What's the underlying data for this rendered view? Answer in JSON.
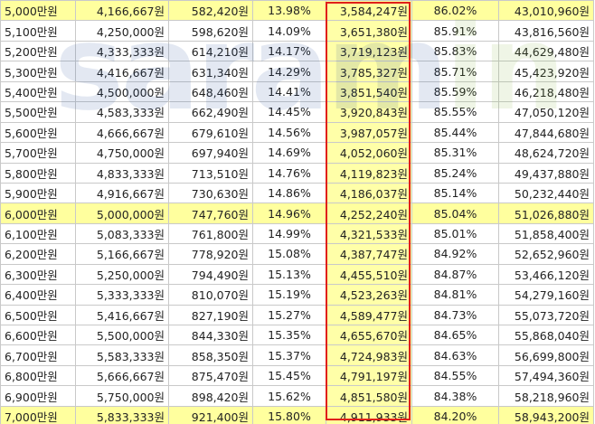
{
  "watermark": {
    "text_main": "saram",
    "text_tail": "in"
  },
  "rows": [
    [
      "5,000만원",
      "4,166,667원",
      "582,420원",
      "13.98%",
      "3,584,247원",
      "86.02%",
      "43,010,960원"
    ],
    [
      "5,100만원",
      "4,250,000원",
      "598,620원",
      "14.09%",
      "3,651,380원",
      "85.91%",
      "43,816,560원"
    ],
    [
      "5,200만원",
      "4,333,333원",
      "614,210원",
      "14.17%",
      "3,719,123원",
      "85.83%",
      "44,629,480원"
    ],
    [
      "5,300만원",
      "4,416,667원",
      "631,340원",
      "14.29%",
      "3,785,327원",
      "85.71%",
      "45,423,920원"
    ],
    [
      "5,400만원",
      "4,500,000원",
      "648,460원",
      "14.41%",
      "3,851,540원",
      "85.59%",
      "46,218,480원"
    ],
    [
      "5,500만원",
      "4,583,333원",
      "662,490원",
      "14.45%",
      "3,920,843원",
      "85.55%",
      "47,050,120원"
    ],
    [
      "5,600만원",
      "4,666,667원",
      "679,610원",
      "14.56%",
      "3,987,057원",
      "85.44%",
      "47,844,680원"
    ],
    [
      "5,700만원",
      "4,750,000원",
      "697,940원",
      "14.69%",
      "4,052,060원",
      "85.31%",
      "48,624,720원"
    ],
    [
      "5,800만원",
      "4,833,333원",
      "713,510원",
      "14.76%",
      "4,119,823원",
      "85.24%",
      "49,437,880원"
    ],
    [
      "5,900만원",
      "4,916,667원",
      "730,630원",
      "14.86%",
      "4,186,037원",
      "85.14%",
      "50,232,440원"
    ],
    [
      "6,000만원",
      "5,000,000원",
      "747,760원",
      "14.96%",
      "4,252,240원",
      "85.04%",
      "51,026,880원"
    ],
    [
      "6,100만원",
      "5,083,333원",
      "761,800원",
      "14.99%",
      "4,321,533원",
      "85.01%",
      "51,858,400원"
    ],
    [
      "6,200만원",
      "5,166,667원",
      "778,920원",
      "15.08%",
      "4,387,747원",
      "84.92%",
      "52,652,960원"
    ],
    [
      "6,300만원",
      "5,250,000원",
      "794,490원",
      "15.13%",
      "4,455,510원",
      "84.87%",
      "53,466,120원"
    ],
    [
      "6,400만원",
      "5,333,333원",
      "810,070원",
      "15.19%",
      "4,523,263원",
      "84.81%",
      "54,279,160원"
    ],
    [
      "6,500만원",
      "5,416,667원",
      "827,190원",
      "15.27%",
      "4,589,477원",
      "84.73%",
      "55,073,720원"
    ],
    [
      "6,600만원",
      "5,500,000원",
      "844,330원",
      "15.35%",
      "4,655,670원",
      "84.65%",
      "55,868,040원"
    ],
    [
      "6,700만원",
      "5,583,333원",
      "858,350원",
      "15.37%",
      "4,724,983원",
      "84.63%",
      "56,699,800원"
    ],
    [
      "6,800만원",
      "5,666,667원",
      "875,470원",
      "15.45%",
      "4,791,197원",
      "84.55%",
      "57,494,360원"
    ],
    [
      "6,900만원",
      "5,750,000원",
      "898,420원",
      "15.62%",
      "4,851,580원",
      "84.38%",
      "58,218,960원"
    ],
    [
      "7,000만원",
      "5,833,333원",
      "921,400원",
      "15.80%",
      "4,911,933원",
      "84.20%",
      "58,943,200원"
    ]
  ],
  "highlight_rows": [
    0,
    10,
    20
  ],
  "colors": {
    "row_highlight": "#ffff9e",
    "column_highlight": "#ffffa8",
    "box_border": "#e0201a"
  }
}
